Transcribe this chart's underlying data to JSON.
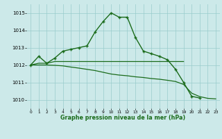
{
  "x": [
    0,
    1,
    2,
    3,
    4,
    5,
    6,
    7,
    8,
    9,
    10,
    11,
    12,
    13,
    14,
    15,
    16,
    17,
    18,
    19,
    20,
    21,
    22,
    23
  ],
  "line_main": [
    1012.0,
    1012.5,
    1012.1,
    1012.4,
    1012.8,
    1012.9,
    1013.0,
    1013.1,
    1013.9,
    1014.5,
    1015.0,
    1014.75,
    1014.75,
    1013.6,
    1012.8,
    1012.65,
    1012.5,
    1012.3,
    1011.75,
    1011.0,
    1010.2,
    1010.1,
    null,
    null
  ],
  "line_ref1": [
    1012.0,
    1012.1,
    1012.1,
    1012.2,
    1012.2,
    1012.2,
    1012.2,
    1012.2,
    1012.2,
    1012.2,
    1012.2,
    1012.2,
    1012.2,
    1012.2,
    1012.2,
    1012.2,
    1012.2,
    1012.2,
    1012.2,
    1012.2,
    null,
    null,
    null,
    null
  ],
  "line_ref2": [
    1012.0,
    1012.0,
    1012.0,
    1011.98,
    1011.95,
    1011.88,
    1011.82,
    1011.75,
    1011.68,
    1011.58,
    1011.48,
    1011.42,
    1011.38,
    1011.32,
    1011.28,
    1011.22,
    1011.18,
    1011.12,
    1011.05,
    1010.88,
    1010.38,
    1010.18,
    1010.08,
    1010.05
  ],
  "ylim": [
    1009.5,
    1015.5
  ],
  "yticks": [
    1010,
    1011,
    1012,
    1013,
    1014,
    1015
  ],
  "xlim": [
    -0.5,
    23.5
  ],
  "xlabel": "Graphe pression niveau de la mer (hPa)",
  "bg_color": "#cce9e9",
  "line_color": "#1a6b1a",
  "grid_color": "#99cccc",
  "figsize": [
    3.2,
    2.0
  ],
  "dpi": 100
}
